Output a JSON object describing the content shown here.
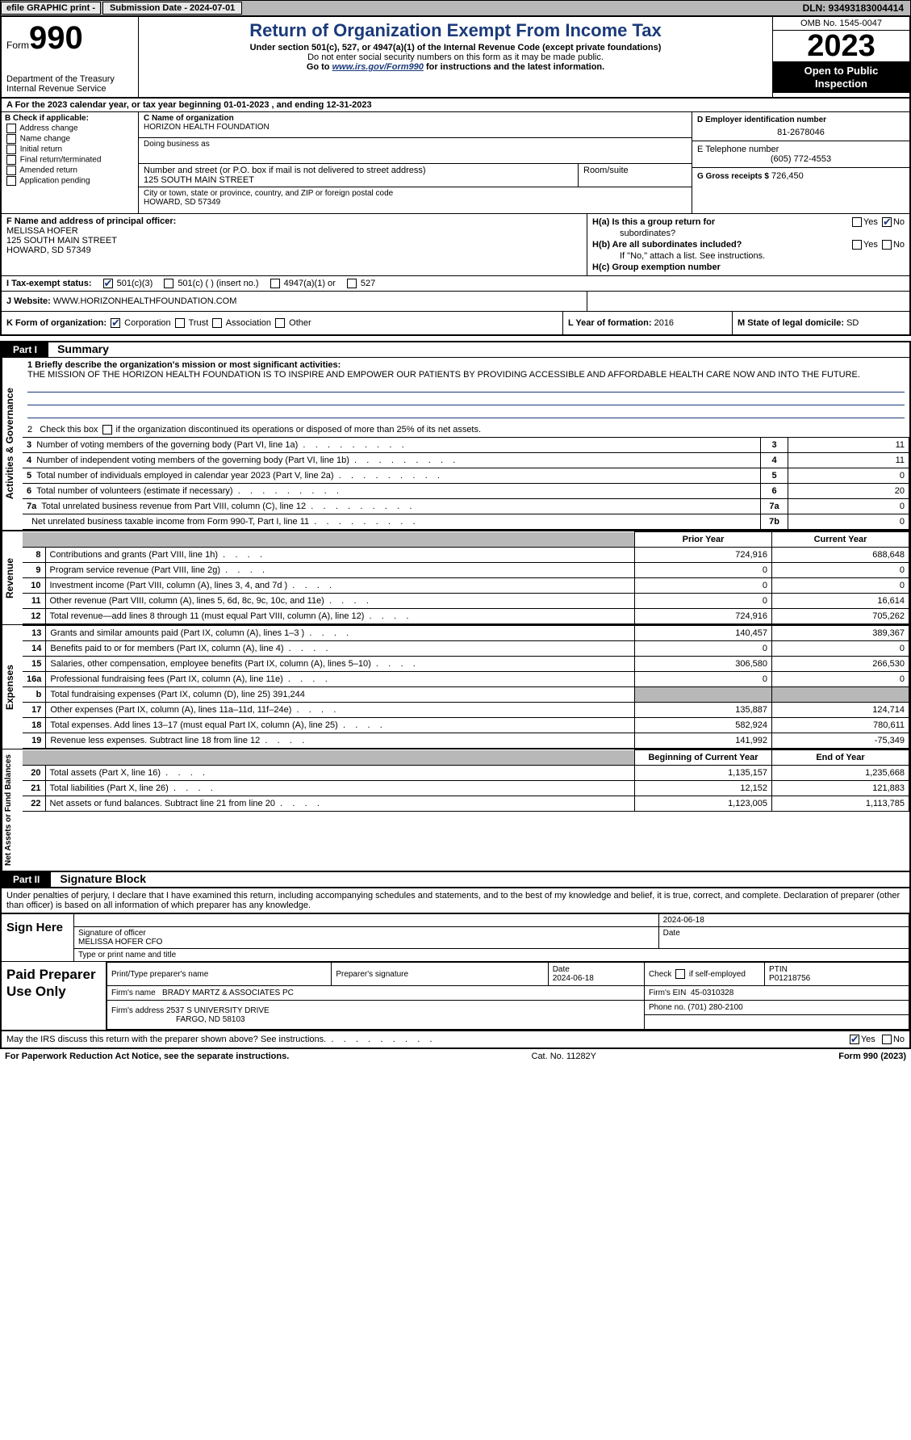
{
  "meta": {
    "background": "#ffffff",
    "text_color": "#000000",
    "accent_color": "#1a3a7a",
    "grey": "#b8b8b8",
    "font_family": "Arial",
    "body_font_size": 11
  },
  "topbar": {
    "efile": "efile GRAPHIC print -",
    "submission": "Submission Date - 2024-07-01",
    "dln": "DLN: 93493183004414"
  },
  "header": {
    "form_label": "Form",
    "form_number": "990",
    "dept": "Department of the Treasury",
    "irs": "Internal Revenue Service",
    "title": "Return of Organization Exempt From Income Tax",
    "sub1": "Under section 501(c), 527, or 4947(a)(1) of the Internal Revenue Code (except private foundations)",
    "sub2": "Do not enter social security numbers on this form as it may be made public.",
    "sub3_prefix": "Go to ",
    "sub3_link": "www.irs.gov/Form990",
    "sub3_suffix": " for instructions and the latest information.",
    "omb": "OMB No. 1545-0047",
    "year": "2023",
    "inspect1": "Open to Public",
    "inspect2": "Inspection"
  },
  "row_a": "A   For the 2023 calendar year, or tax year beginning 01-01-2023    , and ending 12-31-2023",
  "col_b": {
    "lbl": "B Check if applicable:",
    "items": [
      "Address change",
      "Name change",
      "Initial return",
      "Final return/terminated",
      "Amended return",
      "Application pending"
    ]
  },
  "col_c": {
    "name_lbl": "C Name of organization",
    "name": "HORIZON HEALTH FOUNDATION",
    "dba_lbl": "Doing business as",
    "dba": "",
    "street_lbl": "Number and street (or P.O. box if mail is not delivered to street address)",
    "room_lbl": "Room/suite",
    "street": "125 SOUTH MAIN STREET",
    "city_lbl": "City or town, state or province, country, and ZIP or foreign postal code",
    "city": "HOWARD, SD  57349"
  },
  "col_d": {
    "ein_lbl": "D Employer identification number",
    "ein": "81-2678046",
    "tel_lbl": "E Telephone number",
    "tel": "(605) 772-4553",
    "gross_lbl": "G Gross receipts $",
    "gross": "726,450"
  },
  "col_f": {
    "lbl": "F Name and address of principal officer:",
    "name": "MELISSA HOFER",
    "street": "125 SOUTH MAIN STREET",
    "city": "HOWARD, SD  57349"
  },
  "col_h": {
    "ha": "H(a)  Is this a group return for",
    "ha2": "subordinates?",
    "hb": "H(b)  Are all subordinates included?",
    "hb2": "If \"No,\" attach a list. See instructions.",
    "hc": "H(c)  Group exemption number",
    "yes": "Yes",
    "no": "No"
  },
  "sec_i": {
    "lbl": "I    Tax-exempt status:",
    "opts": [
      "501(c)(3)",
      "501(c) (  ) (insert no.)",
      "4947(a)(1) or",
      "527"
    ]
  },
  "sec_j": {
    "lbl": "J    Website:",
    "val": "WWW.HORIZONHEALTHFOUNDATION.COM"
  },
  "sec_k": {
    "lbl": "K Form of organization:",
    "opts": [
      "Corporation",
      "Trust",
      "Association",
      "Other"
    ],
    "l_lbl": "L Year of formation:",
    "l_val": "2016",
    "m_lbl": "M State of legal domicile:",
    "m_val": "SD"
  },
  "part1": {
    "hdr": "Part I",
    "title": "Summary",
    "vtab_ag": "Activities & Governance",
    "vtab_rev": "Revenue",
    "vtab_exp": "Expenses",
    "vtab_na": "Net Assets or Fund Balances",
    "l1_lbl": "1  Briefly describe the organization's mission or most significant activities:",
    "l1_val": "THE MISSION OF THE HORIZON HEALTH FOUNDATION IS TO INSPIRE AND EMPOWER OUR PATIENTS BY PROVIDING ACCESSIBLE AND AFFORDABLE HEALTH CARE NOW AND INTO THE FUTURE.",
    "l2": "2   Check this box          if the organization discontinued its operations or disposed of more than 25% of its net assets.",
    "lines": [
      {
        "n": "3",
        "d": "Number of voting members of the governing body (Part VI, line 1a)",
        "k": "3",
        "v": "11"
      },
      {
        "n": "4",
        "d": "Number of independent voting members of the governing body (Part VI, line 1b)",
        "k": "4",
        "v": "11"
      },
      {
        "n": "5",
        "d": "Total number of individuals employed in calendar year 2023 (Part V, line 2a)",
        "k": "5",
        "v": "0"
      },
      {
        "n": "6",
        "d": "Total number of volunteers (estimate if necessary)",
        "k": "6",
        "v": "20"
      },
      {
        "n": "7a",
        "d": "Total unrelated business revenue from Part VIII, column (C), line 12",
        "k": "7a",
        "v": "0"
      },
      {
        "n": "",
        "d": "Net unrelated business taxable income from Form 990-T, Part I, line 11",
        "k": "7b",
        "v": "0"
      }
    ],
    "col_prior": "Prior Year",
    "col_current": "Current Year",
    "rev": [
      {
        "n": "8",
        "d": "Contributions and grants (Part VIII, line 1h)",
        "p": "724,916",
        "c": "688,648"
      },
      {
        "n": "9",
        "d": "Program service revenue (Part VIII, line 2g)",
        "p": "0",
        "c": "0"
      },
      {
        "n": "10",
        "d": "Investment income (Part VIII, column (A), lines 3, 4, and 7d )",
        "p": "0",
        "c": "0"
      },
      {
        "n": "11",
        "d": "Other revenue (Part VIII, column (A), lines 5, 6d, 8c, 9c, 10c, and 11e)",
        "p": "0",
        "c": "16,614"
      },
      {
        "n": "12",
        "d": "Total revenue—add lines 8 through 11 (must equal Part VIII, column (A), line 12)",
        "p": "724,916",
        "c": "705,262"
      }
    ],
    "exp": [
      {
        "n": "13",
        "d": "Grants and similar amounts paid (Part IX, column (A), lines 1–3 )",
        "p": "140,457",
        "c": "389,367"
      },
      {
        "n": "14",
        "d": "Benefits paid to or for members (Part IX, column (A), line 4)",
        "p": "0",
        "c": "0"
      },
      {
        "n": "15",
        "d": "Salaries, other compensation, employee benefits (Part IX, column (A), lines 5–10)",
        "p": "306,580",
        "c": "266,530"
      },
      {
        "n": "16a",
        "d": "Professional fundraising fees (Part IX, column (A), line 11e)",
        "p": "0",
        "c": "0"
      },
      {
        "n": "b",
        "d": "Total fundraising expenses (Part IX, column (D), line 25) 391,244",
        "p": "grey",
        "c": "grey"
      },
      {
        "n": "17",
        "d": "Other expenses (Part IX, column (A), lines 11a–11d, 11f–24e)",
        "p": "135,887",
        "c": "124,714"
      },
      {
        "n": "18",
        "d": "Total expenses. Add lines 13–17 (must equal Part IX, column (A), line 25)",
        "p": "582,924",
        "c": "780,611"
      },
      {
        "n": "19",
        "d": "Revenue less expenses. Subtract line 18 from line 12",
        "p": "141,992",
        "c": "-75,349"
      }
    ],
    "col_begin": "Beginning of Current Year",
    "col_end": "End of Year",
    "na": [
      {
        "n": "20",
        "d": "Total assets (Part X, line 16)",
        "p": "1,135,157",
        "c": "1,235,668"
      },
      {
        "n": "21",
        "d": "Total liabilities (Part X, line 26)",
        "p": "12,152",
        "c": "121,883"
      },
      {
        "n": "22",
        "d": "Net assets or fund balances. Subtract line 21 from line 20",
        "p": "1,123,005",
        "c": "1,113,785"
      }
    ]
  },
  "part2": {
    "hdr": "Part II",
    "title": "Signature Block",
    "intro": "Under penalties of perjury, I declare that I have examined this return, including accompanying schedules and statements, and to the best of my knowledge and belief, it is true, correct, and complete. Declaration of preparer (other than officer) is based on all information of which preparer has any knowledge."
  },
  "sign": {
    "lbl": "Sign Here",
    "sig_lbl": "Signature of officer",
    "date_lbl": "Date",
    "date_val": "2024-06-18",
    "name": "MELISSA HOFER  CFO",
    "type_lbl": "Type or print name and title"
  },
  "paid": {
    "lbl": "Paid Preparer Use Only",
    "print_lbl": "Print/Type preparer's name",
    "sig_lbl": "Preparer's signature",
    "date_lbl": "Date",
    "date_val": "2024-06-18",
    "check_lbl": "Check         if self-employed",
    "ptin_lbl": "PTIN",
    "ptin": "P01218756",
    "firm_name_lbl": "Firm's name",
    "firm_name": "BRADY MARTZ & ASSOCIATES PC",
    "firm_ein_lbl": "Firm's EIN",
    "firm_ein": "45-0310328",
    "firm_addr_lbl": "Firm's address",
    "firm_addr1": "2537 S UNIVERSITY DRIVE",
    "firm_addr2": "FARGO, ND  58103",
    "phone_lbl": "Phone no.",
    "phone": "(701) 280-2100"
  },
  "discuss": {
    "q": "May the IRS discuss this return with the preparer shown above? See instructions.",
    "yes": "Yes",
    "no": "No"
  },
  "footer": {
    "left": "For Paperwork Reduction Act Notice, see the separate instructions.",
    "mid": "Cat. No. 11282Y",
    "right": "Form 990 (2023)"
  }
}
